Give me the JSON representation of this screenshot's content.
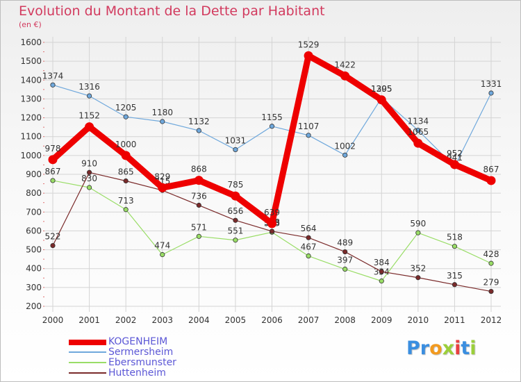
{
  "header": {
    "title": "Evolution du Montant de la Dette par Habitant",
    "subtitle": "(en €)"
  },
  "brand": {
    "letters": [
      {
        "ch": "P",
        "color": "#3a8ee0"
      },
      {
        "ch": "r",
        "color": "#3a8ee0"
      },
      {
        "ch": "o",
        "color": "#f29a1f"
      },
      {
        "ch": "x",
        "color": "#9bcf3a"
      },
      {
        "ch": "i",
        "color": "#e84040"
      },
      {
        "ch": "t",
        "color": "#3a8ee0"
      },
      {
        "ch": "i",
        "color": "#9bcf3a"
      }
    ]
  },
  "chart_data": {
    "type": "line",
    "x": [
      "2000",
      "2001",
      "2002",
      "2003",
      "2004",
      "2005",
      "2006",
      "2007",
      "2008",
      "2009",
      "2010",
      "2011",
      "2012"
    ],
    "ylim": [
      200,
      1600
    ],
    "yticks": [
      200,
      300,
      400,
      500,
      600,
      700,
      800,
      900,
      1000,
      1100,
      1200,
      1300,
      1400,
      1500,
      1600
    ],
    "grid": true,
    "legend_position": "bottom-left",
    "series": [
      {
        "name": "KOGENHEIM",
        "color": "#ee0000",
        "values": [
          978,
          1152,
          1000,
          829,
          868,
          785,
          639,
          1529,
          1422,
          1295,
          1065,
          952,
          867
        ]
      },
      {
        "name": "Sermersheim",
        "color": "#6fa8dc",
        "values": [
          1374,
          1316,
          1205,
          1180,
          1132,
          1031,
          1155,
          1107,
          1002,
          1305,
          1134,
          941,
          1331
        ]
      },
      {
        "name": "Ebersmunster",
        "color": "#99dd66",
        "values": [
          867,
          830,
          713,
          474,
          571,
          551,
          593,
          467,
          397,
          334,
          590,
          518,
          428
        ]
      },
      {
        "name": "Huttenheim",
        "color": "#7a2a2a",
        "values": [
          522,
          910,
          865,
          815,
          736,
          656,
          598,
          564,
          489,
          384,
          352,
          315,
          279
        ]
      }
    ]
  }
}
